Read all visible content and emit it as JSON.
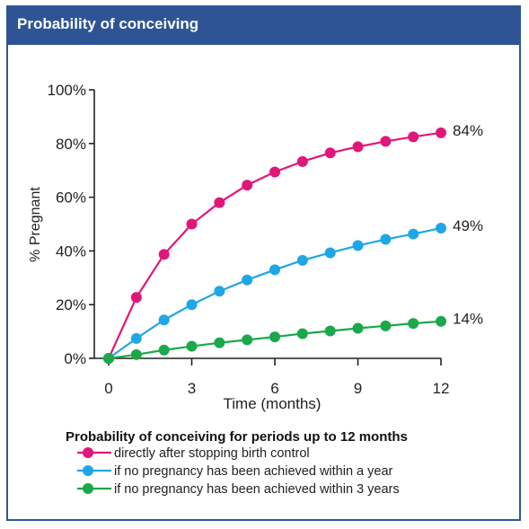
{
  "header": {
    "title": "Probability of conceiving"
  },
  "colors": {
    "frame": "#2f5496",
    "header_bg": "#2f5496",
    "header_text": "#ffffff",
    "series": [
      "#e0177a",
      "#1ea7e6",
      "#1aa84b"
    ]
  },
  "chart_data": {
    "type": "line",
    "title": "",
    "xlabel": "Time (months)",
    "ylabel": "% Pregnant",
    "x": [
      0,
      1,
      2,
      3,
      4,
      5,
      6,
      7,
      8,
      9,
      10,
      11,
      12
    ],
    "xlim": [
      0,
      12
    ],
    "ylim": [
      0,
      100
    ],
    "x_ticks": [
      0,
      3,
      6,
      9,
      12
    ],
    "x_tick_labels": [
      "0",
      "3",
      "6",
      "9",
      "12"
    ],
    "y_ticks": [
      0,
      20,
      40,
      60,
      80,
      100
    ],
    "y_tick_labels": [
      "0%",
      "20%",
      "40%",
      "60%",
      "80%",
      "100%"
    ],
    "grid": false,
    "legend_title": "Probability of conceiving for periods up to 12 months",
    "legend_position": "bottom",
    "series": [
      {
        "name": "directly after stopping birth control",
        "color": "#e0177a",
        "values": [
          0,
          22.7,
          38.7,
          50,
          58,
          64.5,
          69.4,
          73.3,
          76.5,
          78.8,
          80.8,
          82.5,
          84
        ],
        "end_label": "84%"
      },
      {
        "name": "if no pregnancy has been achieved within a year",
        "color": "#1ea7e6",
        "values": [
          0,
          7.4,
          14.3,
          20,
          25,
          29.2,
          33,
          36.5,
          39.3,
          42,
          44.3,
          46.3,
          48.5
        ],
        "end_label": "49%"
      },
      {
        "name": "if no pregnancy has been achieved within 3 years",
        "color": "#1aa84b",
        "values": [
          0,
          1.4,
          3.1,
          4.5,
          5.8,
          6.9,
          8,
          9.2,
          10.2,
          11.2,
          12.1,
          13,
          13.8
        ],
        "end_label": "14%"
      }
    ]
  }
}
